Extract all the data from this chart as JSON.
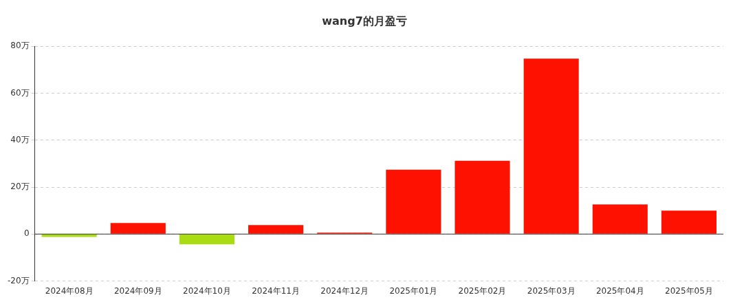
{
  "chart_data": {
    "type": "bar",
    "title": "wang7的月盈亏",
    "categories": [
      "2024年08月",
      "2024年09月",
      "2024年10月",
      "2024年11月",
      "2024年12月",
      "2025年01月",
      "2025年02月",
      "2025年03月",
      "2025年04月",
      "2025年05月"
    ],
    "values": [
      -1.2,
      4.7,
      -4.4,
      3.8,
      0.6,
      27.4,
      31.2,
      74.7,
      12.6,
      10
    ],
    "colors": [
      "#aadd11",
      "#ff1100",
      "#aadd11",
      "#ff1100",
      "#ff1100",
      "#ff1100",
      "#ff1100",
      "#ff1100",
      "#ff1100",
      "#ff1100"
    ],
    "ylim": [
      -20,
      80
    ],
    "yticks": [
      {
        "value": -20,
        "label": "-20万"
      },
      0,
      {
        "value": 20,
        "label": "20万"
      },
      {
        "value": 40,
        "label": "40万"
      },
      {
        "value": 60,
        "label": "60万"
      },
      {
        "value": 80,
        "label": "80万"
      }
    ],
    "ref_lines": [
      {
        "axis": "y",
        "value": 0,
        "color": "#333333",
        "line_style": "solid"
      }
    ],
    "grid": "y",
    "legend": false
  }
}
